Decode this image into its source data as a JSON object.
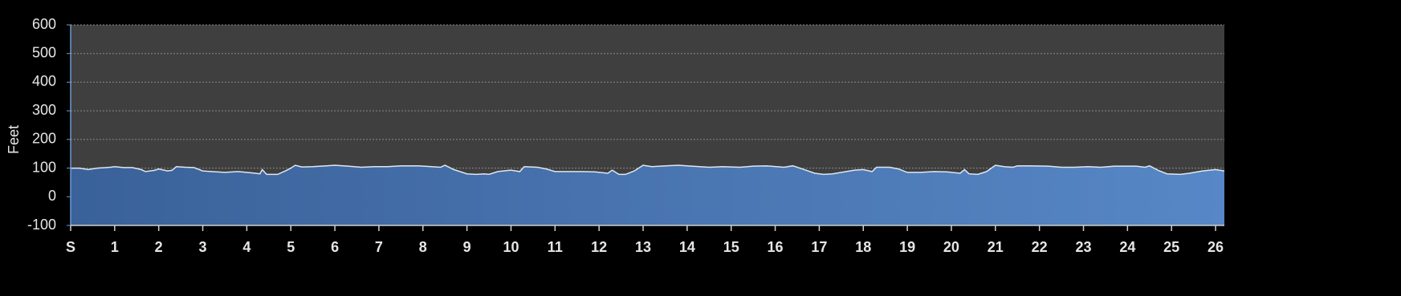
{
  "chart_data": {
    "type": "area",
    "y_label": "Feet",
    "xlim": [
      0,
      26.2
    ],
    "ylim": [
      -100,
      600
    ],
    "yticks": [
      -100,
      0,
      100,
      200,
      300,
      400,
      500,
      600
    ],
    "xticks": [
      {
        "value": 0,
        "label": "S"
      },
      1,
      2,
      3,
      4,
      5,
      6,
      7,
      8,
      9,
      10,
      11,
      12,
      13,
      14,
      15,
      16,
      17,
      18,
      19,
      20,
      21,
      22,
      23,
      24,
      25,
      26
    ],
    "grid": true,
    "color": "#4a77b4",
    "line_color": "#dfe6ef",
    "background": "#3f3f3f",
    "x": [
      0,
      0.2,
      0.4,
      0.6,
      0.9,
      1.0,
      1.2,
      1.4,
      1.6,
      1.7,
      1.9,
      2.0,
      2.2,
      2.3,
      2.4,
      2.6,
      2.8,
      3.0,
      3.2,
      3.5,
      3.8,
      4.0,
      4.2,
      4.3,
      4.35,
      4.45,
      4.7,
      4.9,
      5.0,
      5.1,
      5.25,
      5.5,
      5.8,
      6.0,
      6.3,
      6.6,
      6.9,
      7.2,
      7.5,
      7.9,
      8.2,
      8.4,
      8.5,
      8.7,
      9.0,
      9.2,
      9.4,
      9.5,
      9.7,
      10.0,
      10.2,
      10.3,
      10.6,
      10.8,
      11.0,
      11.3,
      11.6,
      11.9,
      12.2,
      12.3,
      12.45,
      12.6,
      12.8,
      13.0,
      13.2,
      13.5,
      13.8,
      14.1,
      14.5,
      14.8,
      15.2,
      15.5,
      15.8,
      16.2,
      16.4,
      16.6,
      16.9,
      17.1,
      17.3,
      17.5,
      17.8,
      18.0,
      18.2,
      18.3,
      18.6,
      18.8,
      19.0,
      19.3,
      19.6,
      19.9,
      20.2,
      20.3,
      20.4,
      20.6,
      20.8,
      21.0,
      21.2,
      21.4,
      21.5,
      21.8,
      22.2,
      22.5,
      22.8,
      23.1,
      23.4,
      23.7,
      24.0,
      24.2,
      24.4,
      24.5,
      24.7,
      24.9,
      25.2,
      25.4,
      25.7,
      26.0,
      26.2
    ],
    "values": [
      100,
      100,
      95,
      100,
      103,
      105,
      102,
      102,
      95,
      88,
      92,
      97,
      90,
      92,
      105,
      103,
      102,
      90,
      88,
      85,
      88,
      85,
      82,
      80,
      95,
      78,
      78,
      92,
      100,
      110,
      104,
      105,
      108,
      110,
      107,
      103,
      105,
      105,
      108,
      108,
      105,
      103,
      110,
      95,
      80,
      78,
      80,
      78,
      88,
      93,
      88,
      105,
      103,
      97,
      88,
      88,
      88,
      87,
      82,
      93,
      78,
      78,
      90,
      110,
      105,
      108,
      110,
      107,
      103,
      105,
      103,
      107,
      108,
      103,
      108,
      98,
      82,
      78,
      80,
      85,
      93,
      95,
      88,
      103,
      103,
      97,
      85,
      85,
      88,
      87,
      82,
      95,
      80,
      78,
      88,
      110,
      105,
      103,
      108,
      108,
      107,
      103,
      103,
      105,
      103,
      107,
      107,
      107,
      103,
      108,
      92,
      80,
      78,
      82,
      90,
      95,
      90
    ]
  }
}
